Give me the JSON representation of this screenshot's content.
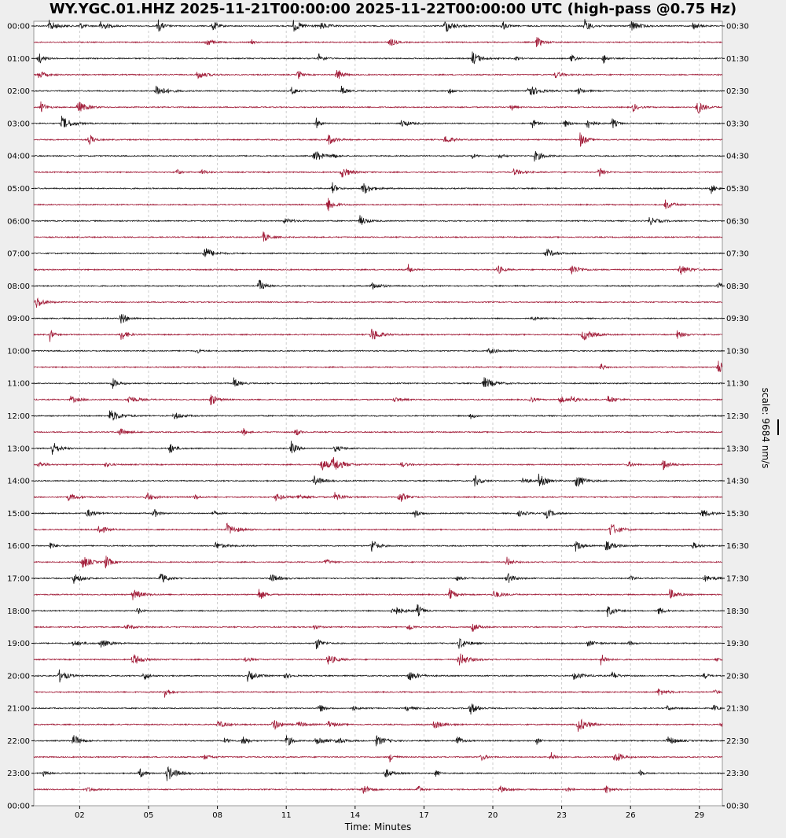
{
  "chart_data": {
    "type": "line",
    "title": "WY.YGC.01.HHZ 2025-11-21T00:00:00 2025-11-22T00:00:00 UTC (high-pass @0.75 Hz)",
    "xlabel": "Time: Minutes",
    "xlim": [
      0,
      30
    ],
    "xticks": [
      "02",
      "05",
      "08",
      "11",
      "14",
      "17",
      "20",
      "23",
      "26",
      "29"
    ],
    "xtick_values": [
      2,
      5,
      8,
      11,
      14,
      17,
      20,
      23,
      26,
      29
    ],
    "grid": "vertical dashed",
    "scale_label": "scale: 9684 nm/s",
    "colors": {
      "even": "#1a1a1a",
      "odd": "#a3203c"
    },
    "left_labels": [
      "00:00",
      "01:00",
      "02:00",
      "03:00",
      "04:00",
      "05:00",
      "06:00",
      "07:00",
      "08:00",
      "09:00",
      "10:00",
      "11:00",
      "12:00",
      "13:00",
      "14:00",
      "15:00",
      "16:00",
      "17:00",
      "18:00",
      "19:00",
      "20:00",
      "21:00",
      "22:00",
      "23:00",
      "00:00"
    ],
    "right_labels": [
      "00:30",
      "01:30",
      "02:30",
      "03:30",
      "04:30",
      "05:30",
      "06:30",
      "07:30",
      "08:30",
      "09:30",
      "10:30",
      "11:30",
      "12:30",
      "13:30",
      "14:30",
      "15:30",
      "16:30",
      "17:30",
      "18:30",
      "19:30",
      "20:30",
      "21:30",
      "22:30",
      "23:30",
      "00:30"
    ],
    "traces_event_minutes": [
      [
        0.65,
        2,
        2.9,
        5.4,
        7.8,
        11.3,
        12.5,
        17.9,
        20.4,
        24,
        26,
        28.7
      ],
      [
        7.5,
        9.5,
        15.5,
        21.9
      ],
      [
        0.2,
        12.4,
        19.1,
        21,
        23.4,
        24.8
      ],
      [
        0.2,
        7.1,
        11.5,
        13.2,
        22.7
      ],
      [
        5.3,
        11.2,
        13.4,
        18.1,
        21.5,
        23.7
      ],
      [
        0.3,
        1.9,
        20.8,
        26.1,
        28.9
      ],
      [
        1.2,
        12.3,
        16,
        21.7,
        23.1,
        24.1,
        25.2
      ],
      [
        2.4,
        12.8,
        17.9,
        23.8
      ],
      [
        12.2,
        13,
        19.1,
        20.3,
        21.8
      ],
      [
        6.2,
        7.3,
        13.4,
        20.9,
        24.6
      ],
      [
        13,
        14.3,
        29.5
      ],
      [
        12.8,
        27.5
      ],
      [
        10.9,
        14.2,
        26.8
      ],
      [
        10
      ],
      [
        7.4,
        22.3
      ],
      [
        16.3,
        20.2,
        23.4,
        28.1
      ],
      [
        9.8,
        14.7,
        29.8
      ],
      [
        0.1
      ],
      [
        3.8,
        21.7
      ],
      [
        0.7,
        3.8,
        14.7,
        23.9,
        28
      ],
      [
        7.1,
        19.8
      ],
      [
        24.7,
        29.8
      ],
      [
        3.4,
        8.7,
        19.6
      ],
      [
        1.6,
        4.1,
        7.7,
        15.7,
        21.6,
        22.9,
        23.4,
        25
      ],
      [
        3.3,
        6.1,
        19
      ],
      [
        3.7,
        9.1,
        11.4
      ],
      [
        0.8,
        5.9,
        11.2,
        13.1
      ],
      [
        0.2,
        3.1,
        12.5,
        13,
        16,
        25.9,
        27.4
      ],
      [
        12.2,
        19.2,
        21.3,
        22,
        23.6
      ],
      [
        1.5,
        4.9,
        7,
        10.5,
        11.5,
        13.1,
        15.9
      ],
      [
        2.3,
        5.2,
        7.8,
        16.6,
        21.1,
        22.3,
        29.1
      ],
      [
        2.8,
        8.4,
        25.1
      ],
      [
        0.7,
        7.9,
        14.7,
        23.6,
        24.9,
        28.7
      ],
      [
        2.1,
        3.1,
        12.7,
        20.6
      ],
      [
        1.7,
        5.5,
        10.3,
        18.4,
        20.6,
        26,
        29.2
      ],
      [
        4.3,
        9.8,
        18.1,
        20,
        27.7
      ],
      [
        4.5,
        15.6,
        16.7,
        25,
        27.2
      ],
      [
        4,
        12.2,
        16.3,
        19.1
      ],
      [
        1.7,
        2.9,
        12.3,
        18.5,
        24.1,
        25.9
      ],
      [
        4.3,
        9.2,
        12.8,
        18.5,
        24.7,
        29.7
      ],
      [
        1.1,
        4.8,
        9.3,
        10.9,
        16.3,
        23.5,
        25.2,
        29.2
      ],
      [
        5.7,
        27.2,
        29.6
      ],
      [
        12.4,
        13.9,
        16.2,
        19,
        27.6,
        29.6
      ],
      [
        8,
        10.4,
        11.5,
        12.8,
        17.4,
        23.7,
        29.9
      ],
      [
        1.7,
        8.3,
        9.1,
        11,
        12.3,
        13.2,
        14.9,
        18.4,
        21.9,
        27.6
      ],
      [
        7.4,
        15.5,
        19.5,
        22.5,
        25.3
      ],
      [
        0.4,
        4.6,
        5.8,
        15.3,
        17.5,
        26.4
      ],
      [
        2.3,
        14.3,
        16.7,
        20.3,
        23.2,
        24.9
      ]
    ]
  }
}
